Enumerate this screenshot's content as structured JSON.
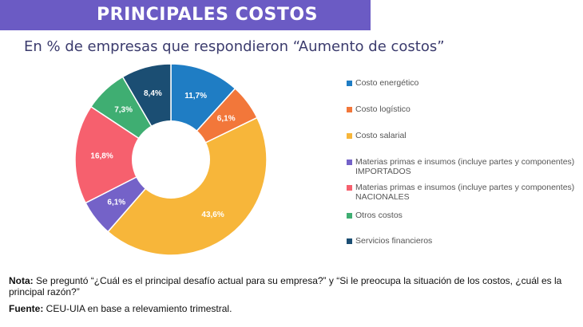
{
  "header": {
    "title": "PRINCIPALES COSTOS",
    "subtitle": "En % de empresas que respondieron “Aumento de costos”"
  },
  "chart_data": {
    "type": "pie",
    "donut": true,
    "categories": [
      "Costo energético",
      "Costo logístico",
      "Costo salarial",
      "Materias primas e insumos (incluye partes y componentes) IMPORTADOS",
      "Materias primas e insumos (incluye partes y componentes) NACIONALES",
      "Otros costos",
      "Servicios financieros"
    ],
    "values": [
      11.7,
      6.1,
      43.6,
      6.1,
      16.8,
      7.3,
      8.4
    ],
    "data_labels": [
      "11,7%",
      "6,1%",
      "43,6%",
      "6,1%",
      "16,8%",
      "7,3%",
      "8,4%"
    ],
    "colors": [
      "#1f7dc4",
      "#f2773a",
      "#f7b63a",
      "#7462c8",
      "#f6606e",
      "#3fae72",
      "#1b4e73"
    ],
    "legend": "right"
  },
  "legend_items": [
    {
      "label": "Costo energético"
    },
    {
      "label": "Costo logístico"
    },
    {
      "label": "Costo salarial"
    },
    {
      "label": "Materias primas e insumos (incluye partes y componentes) IMPORTADOS"
    },
    {
      "label": "Materias primas e insumos (incluye partes y componentes) NACIONALES"
    },
    {
      "label": "Otros costos"
    },
    {
      "label": "Servicios financieros"
    }
  ],
  "footer": {
    "note_label": "Nota:",
    "note_text": " Se preguntó “¿Cuál es el principal desafío actual para su empresa?” y “Si le preocupa la situación de los costos, ¿cuál es la principal razón?”",
    "source_label": "Fuente:",
    "source_text": " CEU-UIA en base a relevamiento trimestral."
  }
}
